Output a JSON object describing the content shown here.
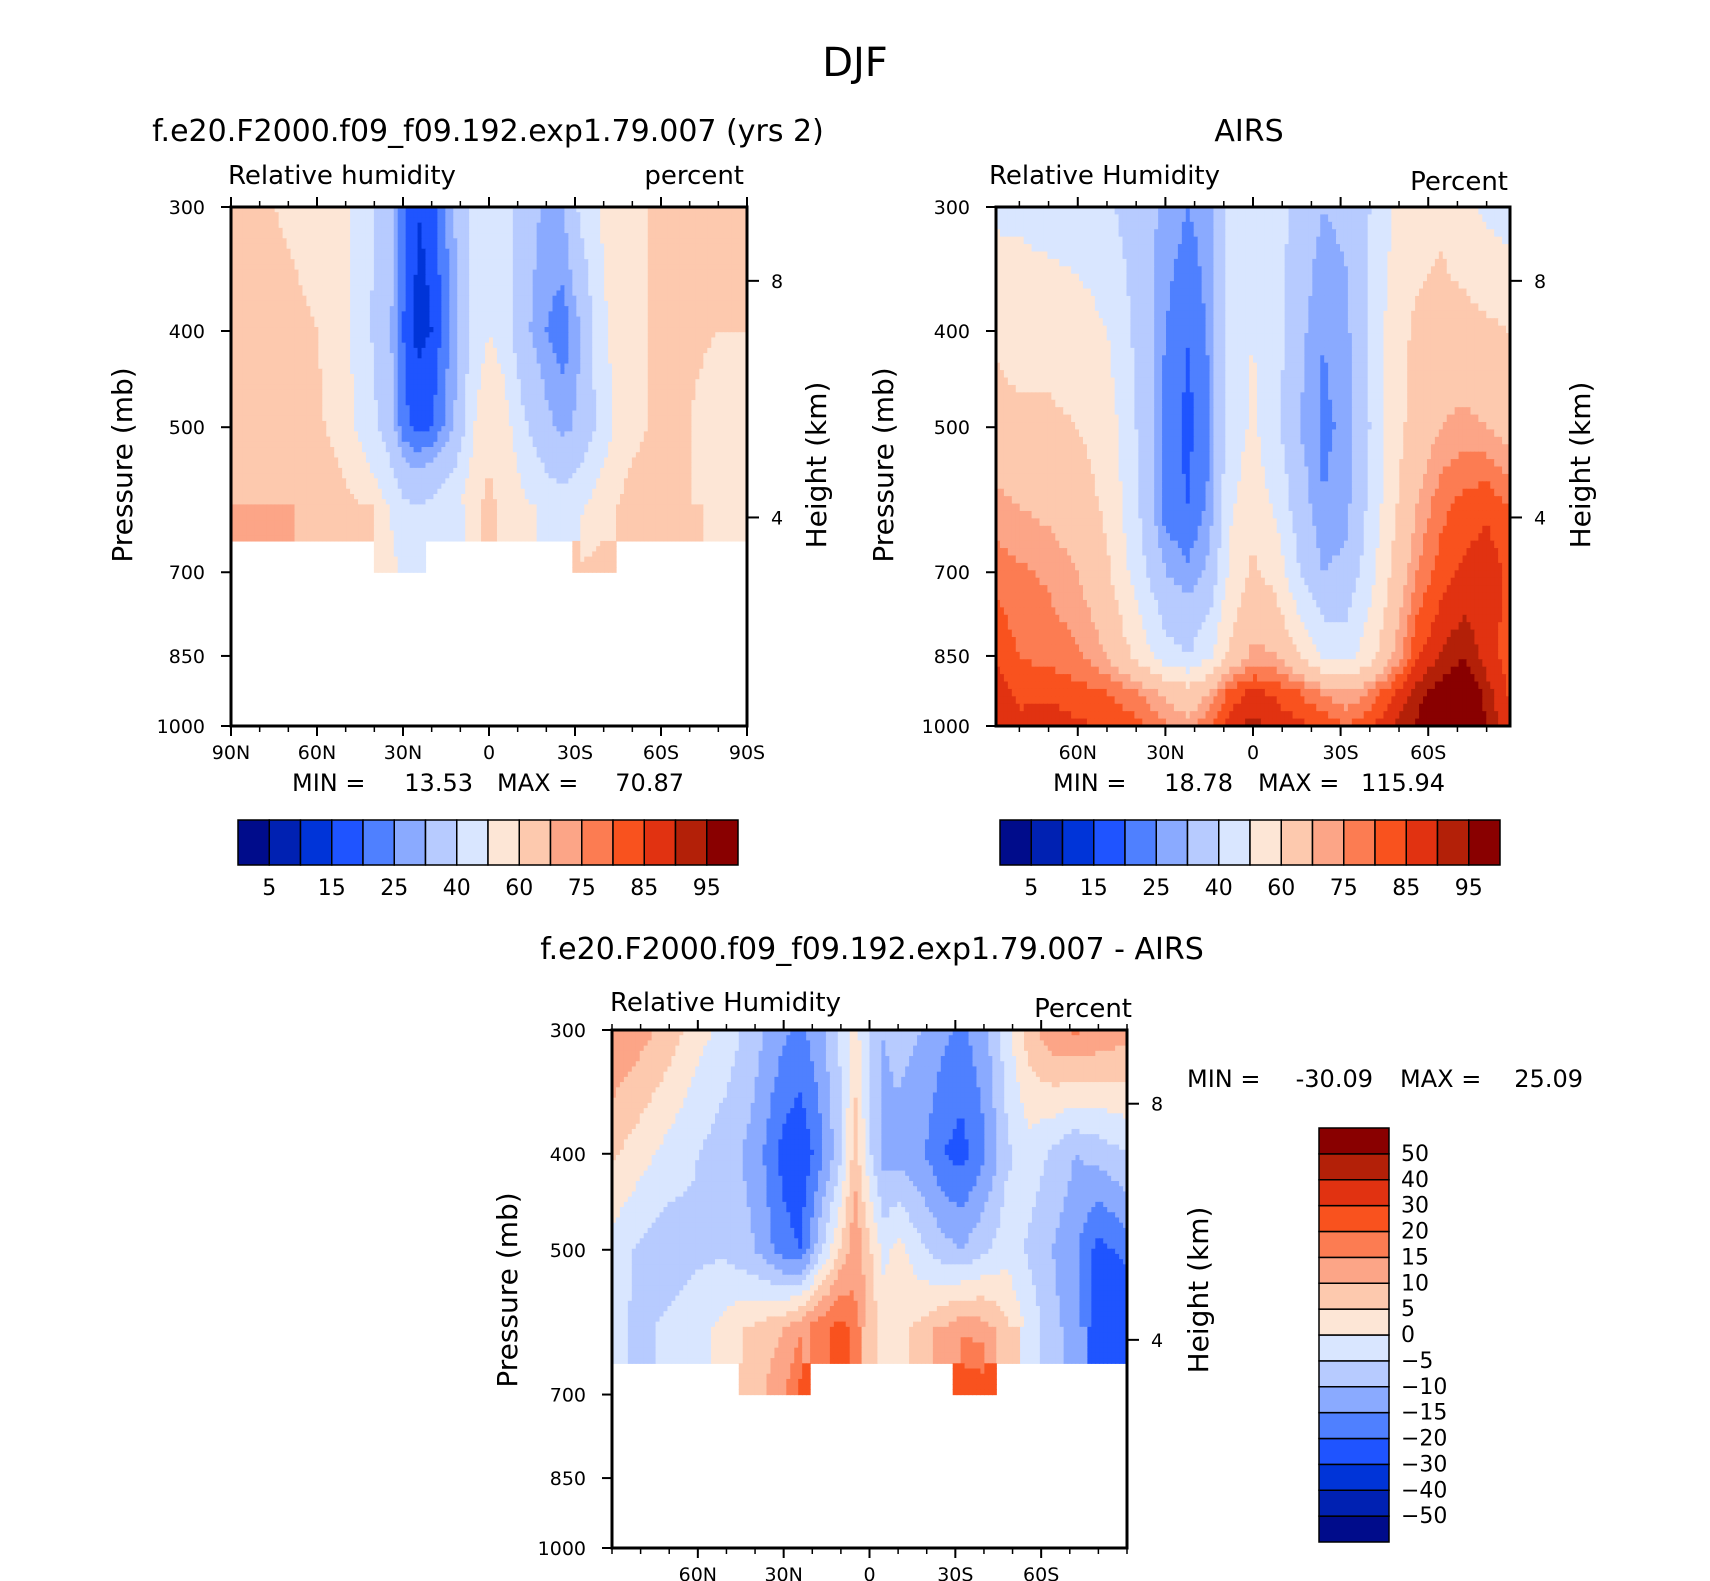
{
  "figure_title": "DJF",
  "colors": {
    "rh_palette": [
      "#000c8b",
      "#0021b2",
      "#0034d8",
      "#1f54ff",
      "#4f80ff",
      "#8aaaff",
      "#b7cbff",
      "#d9e6ff",
      "#fde6d6",
      "#fdc9ae",
      "#fca587",
      "#fc7c52",
      "#f9521e",
      "#e13211",
      "#b32008",
      "#890000"
    ],
    "diff_palette": [
      "#000c8b",
      "#0021b2",
      "#0034d8",
      "#1f54ff",
      "#4f80ff",
      "#8aaaff",
      "#b7cbff",
      "#d9e6ff",
      "#fde6d6",
      "#fdc9ae",
      "#fca587",
      "#fc7c52",
      "#f9521e",
      "#e13211",
      "#b32008",
      "#890000"
    ]
  },
  "chart_data": [
    {
      "id": "panel_model",
      "type": "heatmap",
      "title": "f.e20.F2000.f09_f09.192.exp1.79.007 (yrs 2)",
      "left_label": "Relative humidity",
      "right_label": "percent",
      "ylabel": "Pressure (mb)",
      "ylabel_right": "Height (km)",
      "x_ticks": [
        "90N",
        "60N",
        "30N",
        "0",
        "30S",
        "60S",
        "90S"
      ],
      "x_tick_values": [
        90,
        60,
        30,
        0,
        -30,
        -60,
        -90
      ],
      "xlim": [
        90,
        -90
      ],
      "y_ticks": [
        "300",
        "400",
        "500",
        "700",
        "850",
        "1000"
      ],
      "y_tick_values": [
        300,
        400,
        500,
        700,
        850,
        1000
      ],
      "ylim": [
        300,
        1000
      ],
      "right_ticks": [
        "8",
        "4"
      ],
      "right_tick_values": [
        8,
        4
      ],
      "stats": {
        "min_label": "MIN =",
        "min_value": "13.53",
        "max_label": "MAX =",
        "max_value": "70.87"
      },
      "colorbar": {
        "orientation": "horizontal",
        "levels": [
          5,
          10,
          15,
          20,
          25,
          30,
          40,
          50,
          60,
          70,
          75,
          80,
          85,
          90,
          95
        ],
        "labels": [
          "5",
          "15",
          "25",
          "40",
          "60",
          "75",
          "85",
          "95"
        ]
      },
      "field": {
        "lat": [
          90,
          75,
          60,
          52,
          45,
          35,
          30,
          25,
          20,
          12,
          5,
          0,
          -5,
          -12,
          -20,
          -26,
          -32,
          -40,
          -48,
          -55,
          -62,
          -70,
          -80,
          -90
        ],
        "pressure": [
          300,
          400,
          500,
          600,
          700
        ],
        "values": [
          [
            60,
            60,
            58,
            55,
            45,
            35,
            22,
            15,
            16,
            30,
            45,
            50,
            45,
            35,
            28,
            30,
            42,
            52,
            58,
            60,
            60,
            60,
            60,
            60
          ],
          [
            62,
            62,
            60,
            55,
            45,
            32,
            20,
            13.5,
            15,
            28,
            44,
            50,
            46,
            32,
            25,
            22,
            30,
            48,
            58,
            60,
            60,
            62,
            60,
            60
          ],
          [
            64,
            64,
            62,
            56,
            48,
            35,
            22,
            18,
            20,
            30,
            50,
            58,
            55,
            42,
            32,
            28,
            32,
            45,
            57,
            60,
            60,
            60,
            55,
            50
          ],
          [
            70,
            70,
            68,
            64,
            60,
            50,
            42,
            40,
            42,
            48,
            58,
            62,
            58,
            52,
            46,
            44,
            48,
            56,
            62,
            64,
            64,
            60,
            55,
            50
          ],
          [
            null,
            null,
            null,
            null,
            null,
            54,
            48,
            46,
            null,
            null,
            null,
            null,
            null,
            null,
            null,
            null,
            62,
            64,
            null,
            null,
            null,
            null,
            null,
            null
          ]
        ]
      }
    },
    {
      "id": "panel_obs",
      "type": "heatmap",
      "title": "AIRS",
      "left_label": "Relative Humidity",
      "right_label": "Percent",
      "ylabel": "Pressure (mb)",
      "ylabel_right": "Height (km)",
      "x_ticks": [
        "60N",
        "30N",
        "0",
        "30S",
        "60S"
      ],
      "x_tick_values": [
        60,
        30,
        0,
        -30,
        -60
      ],
      "xlim": [
        88,
        -88
      ],
      "y_ticks": [
        "300",
        "400",
        "500",
        "700",
        "850",
        "1000"
      ],
      "y_tick_values": [
        300,
        400,
        500,
        700,
        850,
        1000
      ],
      "ylim": [
        300,
        1000
      ],
      "right_ticks": [
        "8",
        "4"
      ],
      "right_tick_values": [
        8,
        4
      ],
      "stats": {
        "min_label": "MIN =",
        "min_value": "18.78",
        "max_label": "MAX =",
        "max_value": "115.94"
      },
      "colorbar": {
        "orientation": "horizontal",
        "levels": [
          5,
          10,
          15,
          20,
          25,
          30,
          40,
          50,
          60,
          70,
          75,
          80,
          85,
          90,
          95
        ],
        "labels": [
          "5",
          "15",
          "25",
          "40",
          "60",
          "75",
          "85",
          "95"
        ]
      },
      "field": {
        "lat": [
          88,
          80,
          70,
          60,
          50,
          40,
          30,
          22,
          15,
          8,
          0,
          -8,
          -16,
          -24,
          -32,
          -40,
          -48,
          -56,
          -64,
          -72,
          -80,
          -88
        ],
        "pressure": [
          300,
          400,
          500,
          600,
          700,
          850,
          925,
          1000
        ],
        "values": [
          [
            48,
            48,
            46,
            44,
            42,
            35,
            28,
            25,
            28,
            45,
            48,
            45,
            35,
            30,
            32,
            40,
            50,
            55,
            58,
            52,
            48,
            45
          ],
          [
            58,
            56,
            56,
            55,
            50,
            38,
            25,
            20,
            26,
            45,
            50,
            44,
            32,
            25,
            28,
            42,
            55,
            62,
            64,
            64,
            62,
            60
          ],
          [
            64,
            62,
            62,
            60,
            56,
            40,
            22,
            18.8,
            24,
            44,
            52,
            42,
            30,
            24,
            26,
            40,
            56,
            64,
            70,
            72,
            70,
            66
          ],
          [
            72,
            70,
            68,
            65,
            58,
            42,
            22,
            20,
            26,
            48,
            56,
            48,
            34,
            25,
            28,
            42,
            58,
            70,
            78,
            82,
            84,
            80
          ],
          [
            78,
            76,
            74,
            70,
            62,
            46,
            30,
            26,
            32,
            52,
            62,
            56,
            40,
            30,
            32,
            46,
            62,
            75,
            82,
            86,
            88,
            84
          ],
          [
            84,
            80,
            78,
            76,
            70,
            58,
            44,
            40,
            48,
            62,
            72,
            70,
            60,
            48,
            46,
            56,
            70,
            84,
            90,
            94,
            88,
            82
          ],
          [
            88,
            84,
            84,
            82,
            80,
            76,
            68,
            64,
            70,
            82,
            86,
            84,
            80,
            74,
            70,
            76,
            84,
            92,
            98,
            104,
            92,
            84
          ],
          [
            90,
            86,
            88,
            86,
            84,
            82,
            76,
            72,
            80,
            88,
            92,
            88,
            86,
            84,
            80,
            84,
            90,
            96,
            112,
            116,
            94,
            86
          ]
        ]
      }
    },
    {
      "id": "panel_diff",
      "type": "heatmap",
      "title": "f.e20.F2000.f09_f09.192.exp1.79.007 - AIRS",
      "left_label": "Relative Humidity",
      "right_label": "Percent",
      "ylabel": "Pressure (mb)",
      "ylabel_right": "Height (km)",
      "x_ticks": [
        "60N",
        "30N",
        "0",
        "30S",
        "60S"
      ],
      "x_tick_values": [
        60,
        30,
        0,
        -30,
        -60
      ],
      "xlim": [
        90,
        -90
      ],
      "y_ticks": [
        "300",
        "400",
        "500",
        "700",
        "850",
        "1000"
      ],
      "y_tick_values": [
        300,
        400,
        500,
        700,
        850,
        1000
      ],
      "ylim": [
        300,
        1000
      ],
      "right_ticks": [
        "8",
        "4"
      ],
      "right_tick_values": [
        8,
        4
      ],
      "stats": {
        "min_label": "MIN =",
        "min_value": "-30.09",
        "max_label": "MAX =",
        "max_value": "25.09"
      },
      "colorbar": {
        "orientation": "vertical",
        "levels": [
          -50,
          -40,
          -30,
          -20,
          -15,
          -10,
          -5,
          0,
          5,
          10,
          15,
          20,
          30,
          40,
          50
        ],
        "labels": [
          "50",
          "40",
          "30",
          "20",
          "15",
          "10",
          "5",
          "0",
          "-5",
          "-10",
          "-15",
          "-20",
          "-30",
          "-40",
          "-50"
        ]
      },
      "field": {
        "lat": [
          90,
          80,
          70,
          60,
          50,
          40,
          30,
          24,
          18,
          10,
          5,
          0,
          -5,
          -10,
          -18,
          -26,
          -32,
          -40,
          -48,
          -56,
          -64,
          -72,
          -80,
          -90
        ],
        "pressure": [
          300,
          400,
          500,
          600,
          700
        ],
        "values": [
          [
            15,
            12,
            8,
            2,
            -2,
            -8,
            -14,
            -16,
            -12,
            -4,
            2,
            -6,
            -10,
            -8,
            -10,
            -14,
            -16,
            -12,
            -2,
            8,
            14,
            16,
            14,
            12
          ],
          [
            6,
            2,
            -2,
            -5,
            -8,
            -12,
            -22,
            -24,
            -18,
            -6,
            8,
            -4,
            -12,
            -12,
            -14,
            -20,
            -22,
            -16,
            -6,
            -2,
            -6,
            -10,
            -8,
            -5
          ],
          [
            -2,
            -6,
            -8,
            -6,
            -6,
            -10,
            -18,
            -20,
            -8,
            6,
            14,
            6,
            -2,
            2,
            -4,
            -8,
            -10,
            -6,
            -2,
            -6,
            -10,
            -14,
            -22,
            -18
          ],
          [
            -4,
            -6,
            -4,
            -2,
            2,
            6,
            10,
            14,
            18,
            22,
            16,
            8,
            4,
            4,
            6,
            10,
            14,
            12,
            6,
            -2,
            -8,
            -14,
            -22,
            -30
          ],
          [
            null,
            null,
            null,
            null,
            null,
            8,
            14,
            22,
            null,
            null,
            null,
            null,
            null,
            null,
            null,
            null,
            25,
            24,
            null,
            null,
            null,
            null,
            null,
            null
          ]
        ]
      }
    }
  ]
}
